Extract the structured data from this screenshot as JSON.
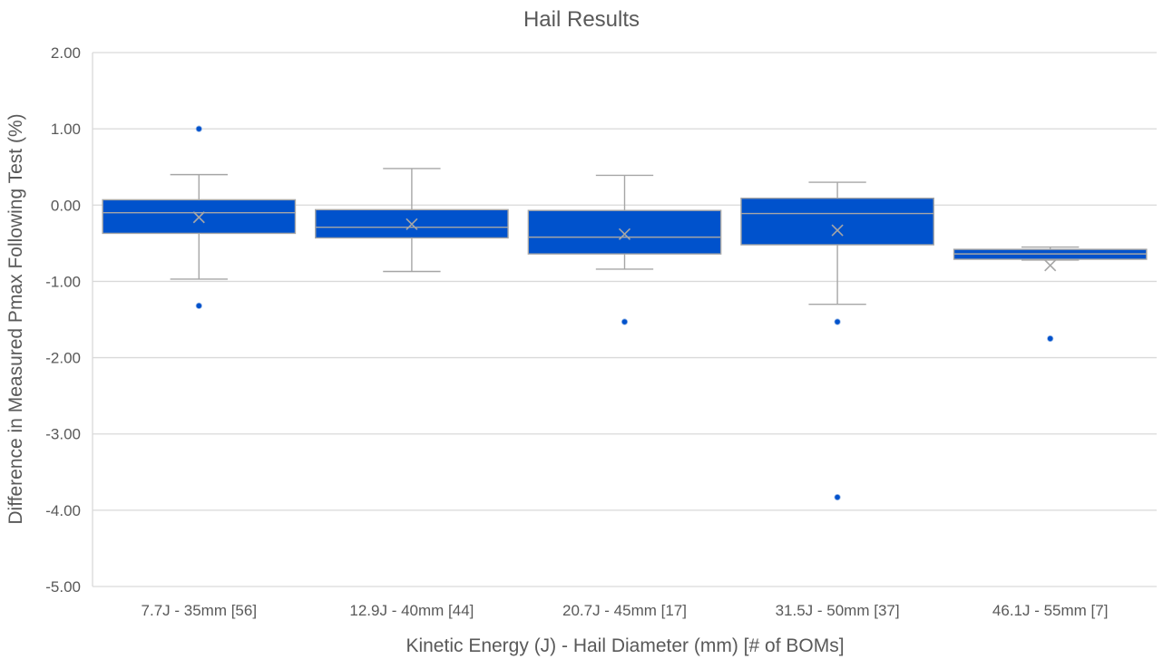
{
  "chart_data": {
    "type": "box",
    "title": "Hail Results",
    "xlabel": "Kinetic Energy (J) - Hail Diameter (mm) [# of BOMs]",
    "ylabel": "Difference in Measured Pmax Following Test (%)",
    "ylim": [
      -5,
      2
    ],
    "yticks": [
      2,
      1,
      0,
      -1,
      -2,
      -3,
      -4,
      -5
    ],
    "ytick_labels": [
      "2.00",
      "1.00",
      "0.00",
      "-1.00",
      "-2.00",
      "-3.00",
      "-4.00",
      "-5.00"
    ],
    "grid": true,
    "categories": [
      "7.7J - 35mm [56]",
      "12.9J - 40mm [44]",
      "20.7J - 45mm [17]",
      "31.5J - 50mm [37]",
      "46.1J - 55mm [7]"
    ],
    "boxes": [
      {
        "whisker_low": -0.97,
        "q1": -0.37,
        "median": -0.1,
        "q3": 0.07,
        "whisker_high": 0.4,
        "mean": -0.16,
        "outliers": [
          1.0,
          -1.32
        ]
      },
      {
        "whisker_low": -0.87,
        "q1": -0.43,
        "median": -0.29,
        "q3": -0.06,
        "whisker_high": 0.48,
        "mean": -0.25,
        "outliers": []
      },
      {
        "whisker_low": -0.84,
        "q1": -0.64,
        "median": -0.42,
        "q3": -0.07,
        "whisker_high": 0.39,
        "mean": -0.38,
        "outliers": [
          -1.53
        ]
      },
      {
        "whisker_low": -1.3,
        "q1": -0.52,
        "median": -0.11,
        "q3": 0.09,
        "whisker_high": 0.3,
        "mean": -0.33,
        "outliers": [
          -1.53,
          -3.83
        ]
      },
      {
        "whisker_low": -0.72,
        "q1": -0.71,
        "median": -0.64,
        "q3": -0.58,
        "whisker_high": -0.55,
        "mean": -0.79,
        "outliers": [
          -1.75
        ]
      }
    ],
    "colors": {
      "box_fill": "#0052CC",
      "box_stroke": "#A6A6A6",
      "outlier": "#0052CC",
      "grid": "#D9D9D9",
      "text": "#595959"
    }
  }
}
